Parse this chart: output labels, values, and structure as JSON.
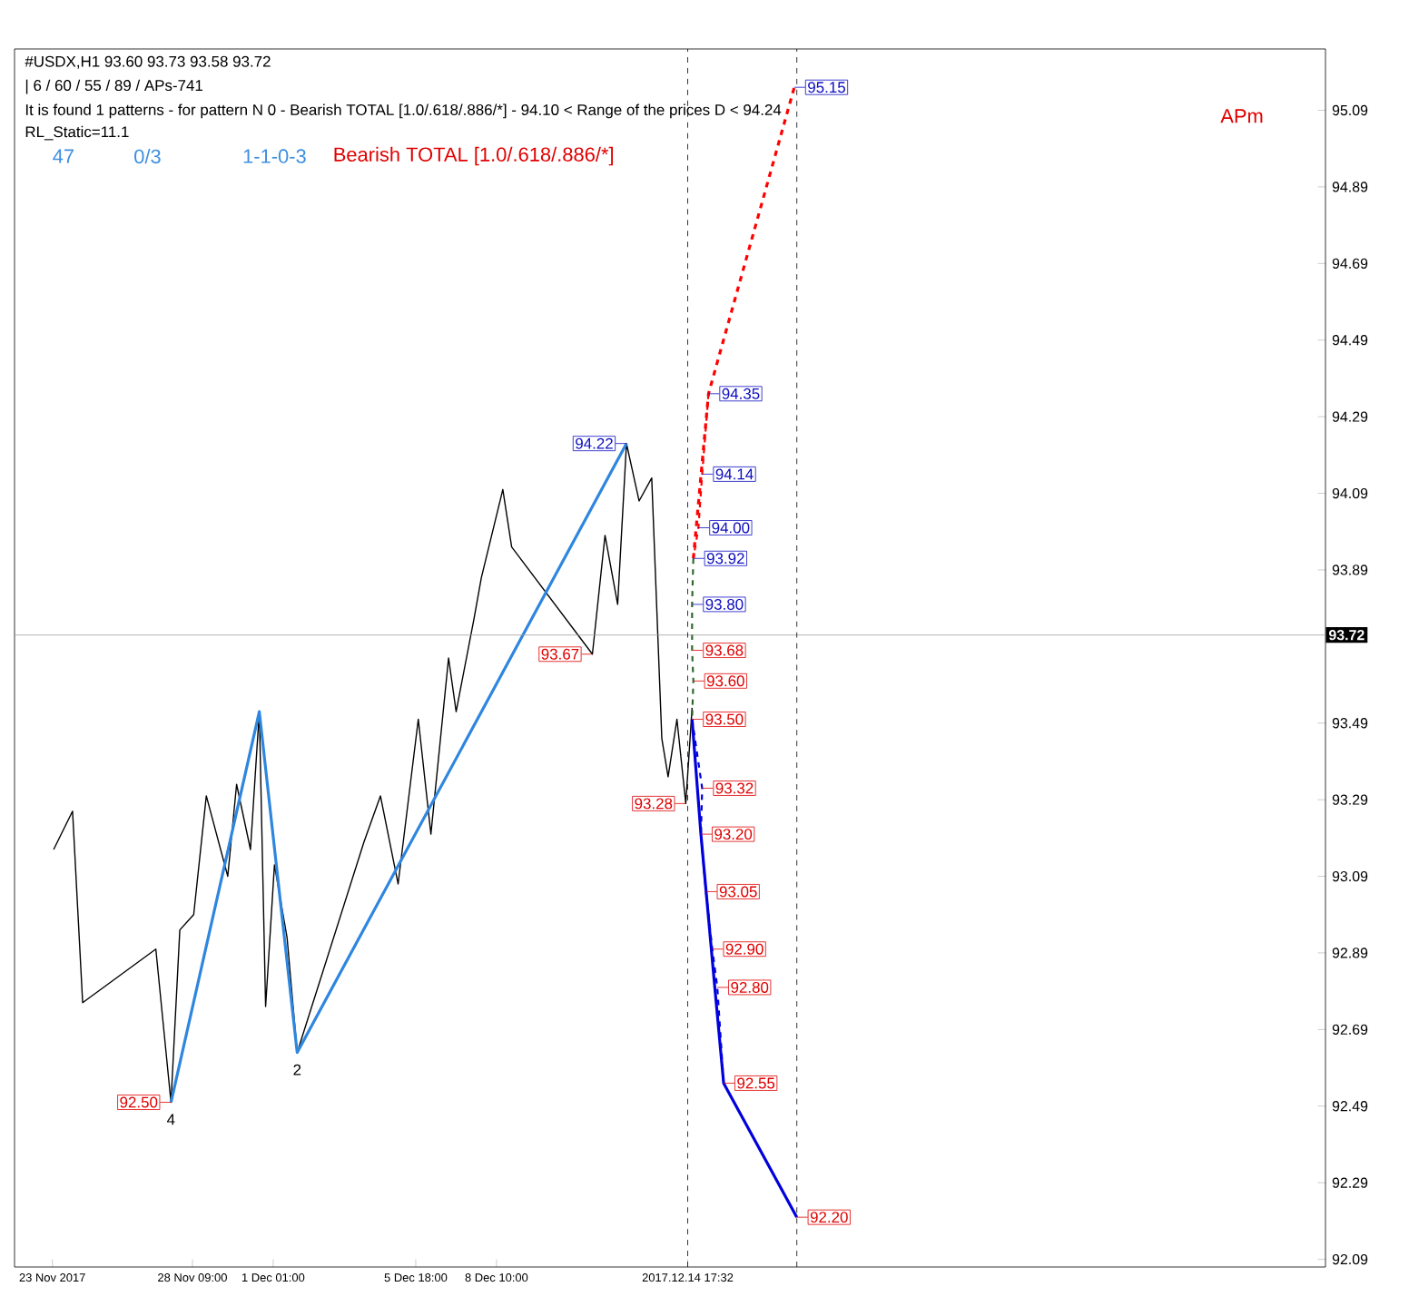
{
  "chart_data": {
    "type": "line",
    "title": "#USDX,H1  93.60 93.73 93.58 93.72",
    "subtitle": "| 6 / 60 / 55 / 89 / APs-741",
    "annotations": [
      "It is found 1 patterns  -  for pattern N 0 - Bearish TOTAL [1.0/.618/.886/*] - 94.10 < Range of the prices D < 94.24",
      "RL_Static=11.1",
      "47",
      "0/3",
      "1-1-0-3",
      "Bearish TOTAL [1.0/.618/.886/*]",
      "APm",
      {
        "text": "95.15",
        "x": "2017-12-18T06:00",
        "y": 95.15
      },
      {
        "text": "94.35",
        "x": "2017-12-15T10:00",
        "y": 94.35
      },
      {
        "text": "94.14",
        "x": "2017-12-15T05:00",
        "y": 94.14
      },
      {
        "text": "94.00",
        "x": "2017-12-15T02:00",
        "y": 94.0
      },
      {
        "text": "93.92",
        "x": "2017-12-14T22:00",
        "y": 93.92
      },
      {
        "text": "93.80",
        "x": "2017-12-14T21:00",
        "y": 93.8
      },
      {
        "text": "93.68",
        "x": "2017-12-14T21:00",
        "y": 93.68
      },
      {
        "text": "93.60",
        "x": "2017-12-14T22:00",
        "y": 93.6
      },
      {
        "text": "93.50",
        "x": "2017-12-14T21:00",
        "y": 93.5
      },
      {
        "text": "93.32",
        "x": "2017-12-15T05:00",
        "y": 93.32
      },
      {
        "text": "93.20",
        "x": "2017-12-15T04:00",
        "y": 93.2
      },
      {
        "text": "93.05",
        "x": "2017-12-15T08:00",
        "y": 93.05
      },
      {
        "text": "92.90",
        "x": "2017-12-15T13:00",
        "y": 92.9
      },
      {
        "text": "92.80",
        "x": "2017-12-15T17:00",
        "y": 92.8
      },
      {
        "text": "92.55",
        "x": "2017-12-15T22:00",
        "y": 92.55
      },
      {
        "text": "92.20",
        "x": "2017-12-18T08:00",
        "y": 92.2
      },
      {
        "text": "94.22",
        "x": "2017-12-12T17:00",
        "y": 94.22
      },
      {
        "text": "93.67",
        "x": "2017-12-11T14:00",
        "y": 93.67
      },
      {
        "text": "93.28",
        "x": "2017-12-14T16:00",
        "y": 93.28
      },
      {
        "text": "92.50",
        "x": "2017-11-27T16:00",
        "y": 92.5
      },
      {
        "text": "4",
        "x": "2017-11-27T16:00",
        "y": 92.5
      },
      {
        "text": "2",
        "x": "2017-12-01T20:00",
        "y": 92.63
      }
    ],
    "xlim": [
      "2017-11-22T12:00",
      "2018-01-04T19:00"
    ],
    "ylim": [
      92.07,
      95.25
    ],
    "xticks": [
      {
        "value": "2017-11-23T18:00",
        "label": "23 Nov 2017"
      },
      {
        "value": "2017-11-28T09:00",
        "label": "28 Nov 09:00"
      },
      {
        "value": "2017-12-01T01:00",
        "label": "1 Dec 01:00"
      },
      {
        "value": "2017-12-05T18:00",
        "label": "5 Dec 18:00"
      },
      {
        "value": "2017-12-08T10:00",
        "label": "8 Dec 10:00"
      },
      {
        "value": "2017-12-14T17:32",
        "label": "2017.12.14 17:32"
      }
    ],
    "yticks": [
      92.09,
      92.29,
      92.49,
      92.69,
      92.89,
      93.09,
      93.29,
      93.49,
      93.89,
      94.09,
      94.29,
      94.49,
      94.69,
      94.89,
      95.09
    ],
    "ref_lines": [
      {
        "axis": "y",
        "value": 93.72,
        "label": "93.72",
        "color": "#a0a0a0",
        "line_style": "solid"
      },
      {
        "axis": "x",
        "value": "2017-12-14T17:32",
        "color": "#000000",
        "line_style": "dashed"
      },
      {
        "axis": "x",
        "value": "2017-12-18T08:00",
        "color": "#000000",
        "line_style": "dashed"
      }
    ],
    "series": [
      {
        "color": "#000000",
        "line_style": "solid",
        "x": [
          "2017-11-23T19:00",
          "2017-11-24T10:00",
          "2017-11-24T18:00",
          "2017-11-27T04:00",
          "2017-11-27T16:00",
          "2017-11-27T23:00",
          "2017-11-28T10:00",
          "2017-11-28T20:00",
          "2017-11-29T13:00",
          "2017-11-29T20:00",
          "2017-11-30T07:00",
          "2017-11-30T14:00",
          "2017-11-30T19:00",
          "2017-12-01T02:00",
          "2017-12-01T12:00",
          "2017-12-01T20:00",
          "2017-12-04T01:00",
          "2017-12-04T14:00",
          "2017-12-05T04:00",
          "2017-12-05T20:00",
          "2017-12-06T06:00",
          "2017-12-06T20:00",
          "2017-12-07T02:00",
          "2017-12-07T16:00",
          "2017-12-07T22:00",
          "2017-12-08T15:00",
          "2017-12-08T22:00",
          "2017-12-11T14:00",
          "2017-12-12T00:00",
          "2017-12-12T10:00",
          "2017-12-12T17:00",
          "2017-12-13T03:00",
          "2017-12-13T13:00",
          "2017-12-13T21:00",
          "2017-12-14T02:00",
          "2017-12-14T09:00",
          "2017-12-14T16:00",
          "2017-12-14T21:00"
        ],
        "values": [
          93.16,
          93.26,
          92.76,
          92.9,
          92.5,
          92.95,
          92.99,
          93.3,
          93.09,
          93.33,
          93.16,
          93.52,
          92.75,
          93.12,
          92.93,
          92.63,
          93.18,
          93.3,
          93.07,
          93.5,
          93.2,
          93.66,
          93.52,
          93.76,
          93.87,
          94.1,
          93.95,
          93.67,
          93.98,
          93.8,
          94.22,
          94.07,
          94.13,
          93.45,
          93.35,
          93.5,
          93.28,
          93.53
        ]
      },
      {
        "color": "#2e86de",
        "line_style": "solid",
        "x": [
          "2017-11-27T16:00",
          "2017-11-30T14:00",
          "2017-12-01T20:00",
          "2017-12-12T17:00"
        ],
        "values": [
          92.5,
          93.52,
          92.63,
          94.22
        ]
      },
      {
        "color": "#ff0000",
        "line_style": "dashed",
        "x": [
          "2017-12-14T22:00",
          "2017-12-15T10:00",
          "2017-12-18T06:00"
        ],
        "values": [
          93.92,
          94.35,
          95.15
        ]
      },
      {
        "color": "#0000dd",
        "line_style": "solid",
        "x": [
          "2017-12-14T21:00",
          "2017-12-15T04:00",
          "2017-12-15T15:00",
          "2017-12-15T22:00",
          "2017-12-18T08:00"
        ],
        "values": [
          93.5,
          93.2,
          92.8,
          92.55,
          92.2
        ]
      },
      {
        "color": "#ff0000",
        "line_style": "dashed",
        "x": [
          "2017-12-15T10:00",
          "2017-12-15T05:00",
          "2017-12-15T02:00",
          "2017-12-14T22:00"
        ],
        "values": [
          94.35,
          94.14,
          94.0,
          93.92
        ]
      },
      {
        "color": "#2f6b2f",
        "line_style": "dashed",
        "x": [
          "2017-12-14T22:00",
          "2017-12-14T21:00",
          "2017-12-14T21:00",
          "2017-12-14T22:00",
          "2017-12-14T21:00"
        ],
        "values": [
          93.92,
          93.8,
          93.68,
          93.6,
          93.5
        ]
      },
      {
        "color": "#0000dd",
        "line_style": "dashed",
        "x": [
          "2017-12-14T21:00",
          "2017-12-15T05:00",
          "2017-12-15T04:00",
          "2017-12-15T08:00",
          "2017-12-15T13:00",
          "2017-12-15T17:00",
          "2017-12-15T22:00"
        ],
        "values": [
          93.5,
          93.32,
          93.2,
          93.05,
          92.9,
          92.8,
          92.55
        ]
      }
    ]
  }
}
